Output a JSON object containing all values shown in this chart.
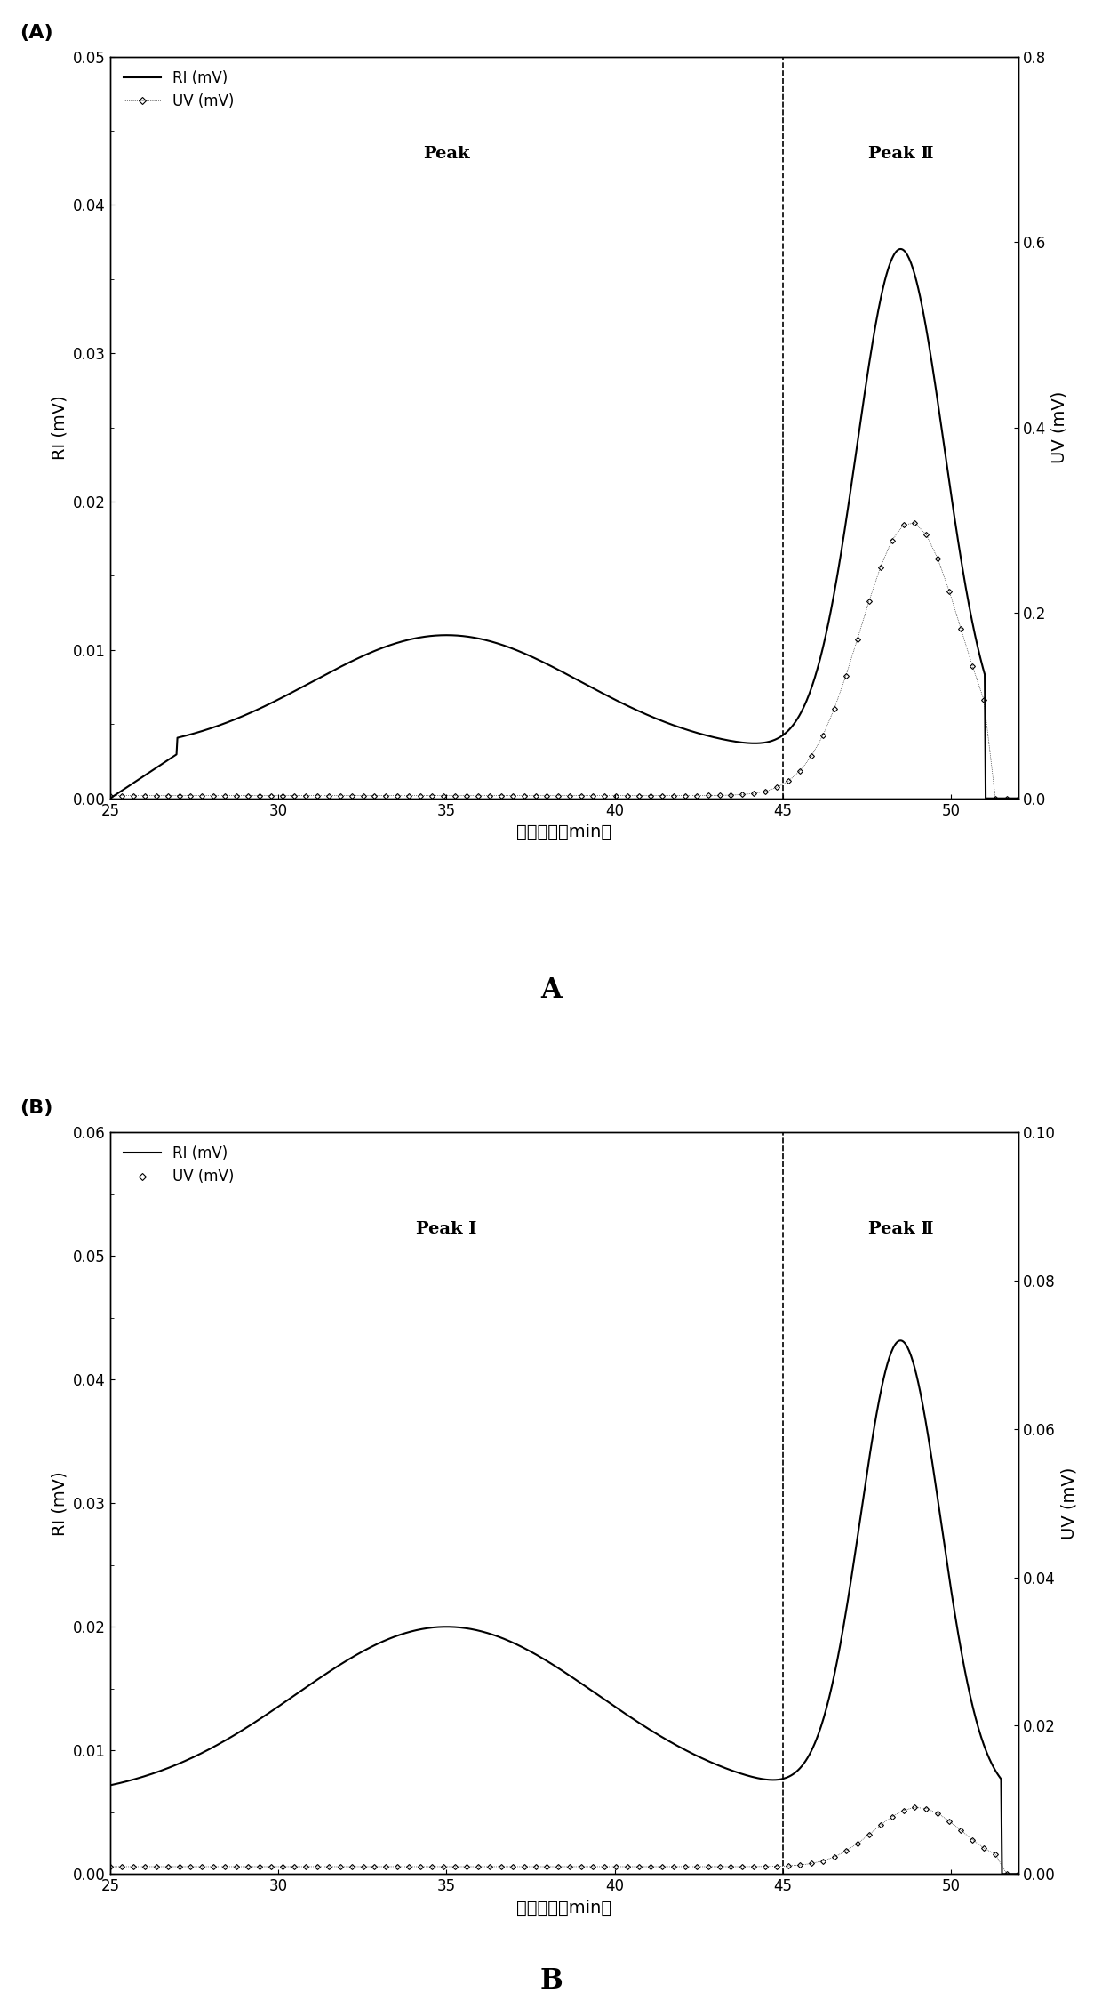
{
  "panel_A": {
    "label": "(A)",
    "RI_ylim": [
      0.0,
      0.05
    ],
    "UV_ylim": [
      0.0,
      0.8
    ],
    "RI_yticks": [
      0.0,
      0.01,
      0.02,
      0.03,
      0.04,
      0.05
    ],
    "UV_yticks": [
      0.0,
      0.2,
      0.4,
      0.6,
      0.8
    ],
    "xlim": [
      25,
      52
    ],
    "xticks": [
      25,
      30,
      35,
      40,
      45,
      50
    ],
    "vline": 45,
    "peak1_label": "Peak",
    "peak2_label": "Peak Ⅱ",
    "xlabel": "洗脱时间（min）",
    "ylabel_left": "RI (mV)",
    "ylabel_right": "UV (mV)"
  },
  "panel_B": {
    "label": "(B)",
    "RI_ylim": [
      0.0,
      0.06
    ],
    "UV_ylim": [
      0.0,
      0.1
    ],
    "RI_yticks": [
      0.0,
      0.01,
      0.02,
      0.03,
      0.04,
      0.05,
      0.06
    ],
    "UV_yticks": [
      0.0,
      0.02,
      0.04,
      0.06,
      0.08,
      0.1
    ],
    "xlim": [
      25,
      52
    ],
    "xticks": [
      25,
      30,
      35,
      40,
      45,
      50
    ],
    "vline": 45,
    "peak1_label": "Peak Ⅰ",
    "peak2_label": "Peak Ⅱ",
    "xlabel": "洗脱时间（min）",
    "ylabel_left": "RI (mV)",
    "ylabel_right": "UV (mV)"
  },
  "bottom_label_A": "A",
  "bottom_label_B": "B",
  "background": "#ffffff",
  "label_fontsize": 14
}
